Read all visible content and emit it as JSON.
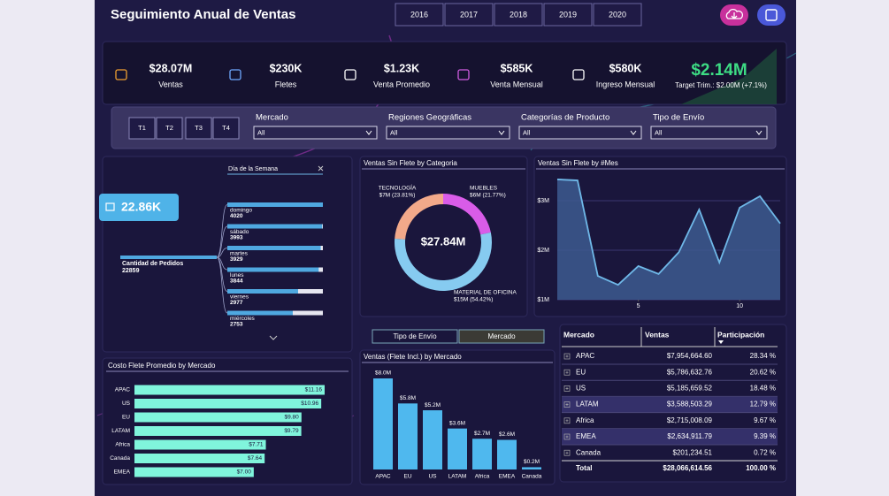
{
  "header": {
    "title": "Seguimiento Anual de Ventas",
    "years": [
      "2016",
      "2017",
      "2018",
      "2019",
      "2020"
    ]
  },
  "kpis": [
    {
      "value": "$28.07M",
      "label": "Ventas"
    },
    {
      "value": "$230K",
      "label": "Fletes"
    },
    {
      "value": "$1.23K",
      "label": "Venta Promedio"
    },
    {
      "value": "$585K",
      "label": "Venta Mensual"
    },
    {
      "value": "$580K",
      "label": "Ingreso Mensual"
    }
  ],
  "target": {
    "value": "$2.14M",
    "label": "Target Trim.: $2.00M (+7.1%)"
  },
  "filters": {
    "quarters": [
      "T1",
      "T2",
      "T3",
      "T4"
    ],
    "dropdowns": [
      {
        "label": "Mercado",
        "value": "All"
      },
      {
        "label": "Regiones Geográficas",
        "value": "All"
      },
      {
        "label": "Categorías de Producto",
        "value": "All"
      },
      {
        "label": "Tipo de Envío",
        "value": "All"
      }
    ]
  },
  "decomposition": {
    "card": "22.86K",
    "level": "Día de la Semana",
    "root_label": "Cantidad de Pedidos",
    "root_value": 22859
  },
  "toggle": [
    "Tipo de Envío",
    "Mercado"
  ],
  "chart_data": [
    {
      "type": "decomposition",
      "categories": [
        "domingo",
        "sábado",
        "martes",
        "lunes",
        "viernes",
        "miércoles"
      ],
      "values": [
        4020,
        3993,
        3929,
        3844,
        2977,
        2753
      ],
      "color": "#4fa8e0"
    },
    {
      "type": "pie",
      "title": "Ventas Sin Flete by Categoria",
      "center_label": "$27.84M",
      "categories": [
        "MUEBLES",
        "MATERIAL DE OFICINA",
        "TECNOLOGÍA"
      ],
      "values": [
        21.77,
        54.42,
        23.81
      ],
      "value_labels": [
        "$6M (21.77%)",
        "$15M (54.42%)",
        "$7M (23.81%)"
      ],
      "colors": [
        "#d95ce8",
        "#86cbf0",
        "#f2a98a"
      ]
    },
    {
      "type": "area",
      "title": "Ventas Sin Flete by #Mes",
      "x": [
        1,
        2,
        3,
        4,
        5,
        6,
        7,
        8,
        9,
        10,
        11,
        12
      ],
      "values": [
        3430000,
        3410000,
        1480000,
        1300000,
        1680000,
        1520000,
        1960000,
        2820000,
        1750000,
        2860000,
        3090000,
        2540000
      ],
      "xlim": [
        1,
        12
      ],
      "xticks": [
        5,
        10
      ],
      "ylim": [
        1000000,
        3500000
      ],
      "yticks": [
        {
          "value": 1000000,
          "label": "$1M"
        },
        {
          "value": 2000000,
          "label": "$2M"
        },
        {
          "value": 3000000,
          "label": "$3M"
        }
      ],
      "color": "#6fb8e8",
      "grid": true
    },
    {
      "type": "bar",
      "orientation": "horizontal",
      "title": "Costo Flete Promedio by Mercado",
      "categories": [
        "APAC",
        "US",
        "EU",
        "LATAM",
        "Africa",
        "Canada",
        "EMEA"
      ],
      "values": [
        11.16,
        10.96,
        9.8,
        9.79,
        7.71,
        7.64,
        7.0
      ],
      "value_labels": [
        "$11.16",
        "$10.96",
        "$9.80",
        "$9.79",
        "$7.71",
        "$7.64",
        "$7.00"
      ],
      "color": "#80f5dc"
    },
    {
      "type": "bar",
      "orientation": "vertical",
      "title": "Ventas (Flete Incl.) by Mercado",
      "categories": [
        "APAC",
        "EU",
        "US",
        "LATAM",
        "Africa",
        "EMEA",
        "Canada"
      ],
      "values": [
        8000000,
        5800000,
        5200000,
        3600000,
        2700000,
        2600000,
        200000
      ],
      "value_labels": [
        "$8.0M",
        "$5.8M",
        "$5.2M",
        "$3.6M",
        "$2.7M",
        "$2.6M",
        "$0.2M"
      ],
      "color": "#4fb8ee"
    }
  ],
  "table": {
    "columns": [
      "Mercado",
      "Ventas",
      "Participación"
    ],
    "rows": [
      [
        "APAC",
        "$7,954,664.60",
        "28.34 %"
      ],
      [
        "EU",
        "$5,786,632.76",
        "20.62 %"
      ],
      [
        "US",
        "$5,185,659.52",
        "18.48 %"
      ],
      [
        "LATAM",
        "$3,588,503.29",
        "12.79 %"
      ],
      [
        "Africa",
        "$2,715,008.09",
        "9.67 %"
      ],
      [
        "EMEA",
        "$2,634,911.79",
        "9.39 %"
      ],
      [
        "Canada",
        "$201,234.51",
        "0.72 %"
      ]
    ],
    "total": [
      "Total",
      "$28,066,614.56",
      "100.00 %"
    ]
  }
}
